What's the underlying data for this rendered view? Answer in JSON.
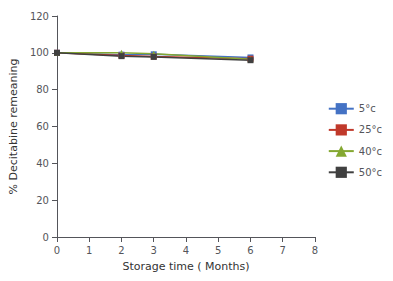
{
  "chart_data": {
    "type": "line",
    "x": [
      0,
      2,
      3,
      6
    ],
    "series": [
      {
        "name": "5°c",
        "color": "#4472c4",
        "marker": "square",
        "values": [
          100,
          99.0,
          99.2,
          97.5
        ]
      },
      {
        "name": "25°c",
        "color": "#c0392b",
        "marker": "square",
        "values": [
          100,
          98.5,
          98.0,
          96.8
        ]
      },
      {
        "name": "40°c",
        "color": "#84a831",
        "marker": "triangle",
        "values": [
          100,
          100.0,
          99.5,
          96.5
        ]
      },
      {
        "name": "50°c",
        "color": "#404040",
        "marker": "square",
        "values": [
          100,
          98.2,
          97.8,
          96.0
        ]
      }
    ],
    "xlabel": "Storage time ( Months)",
    "ylabel": "% Decitabine remeaning",
    "xlim": [
      0,
      8
    ],
    "xticks": [
      0,
      1,
      2,
      3,
      4,
      5,
      6,
      7,
      8
    ],
    "ylim": [
      0,
      120
    ],
    "yticks": [
      0,
      20,
      40,
      60,
      80,
      100,
      120
    ],
    "grid": false,
    "legend": "right"
  }
}
